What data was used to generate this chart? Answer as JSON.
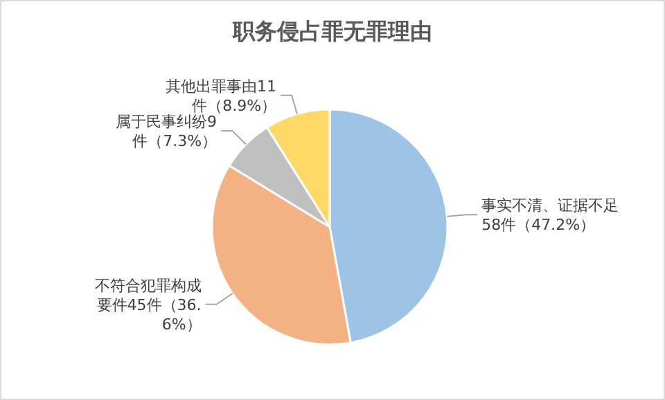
{
  "chart_data": {
    "type": "pie",
    "title": "职务侵占罪无罪理由",
    "categories": [
      "事实不清、证据不足",
      "不符合犯罪构成要件",
      "属于民事纠纷",
      "其他出罪事由"
    ],
    "values": [
      58,
      45,
      9,
      11
    ],
    "value_labels": [
      "58件（47.2%）",
      "45件（36.6%）",
      "9件（7.3%）",
      "11件（8.9%）"
    ],
    "colors": [
      "#9dc3e6",
      "#f4b183",
      "#bfbfbf",
      "#ffd966"
    ]
  }
}
